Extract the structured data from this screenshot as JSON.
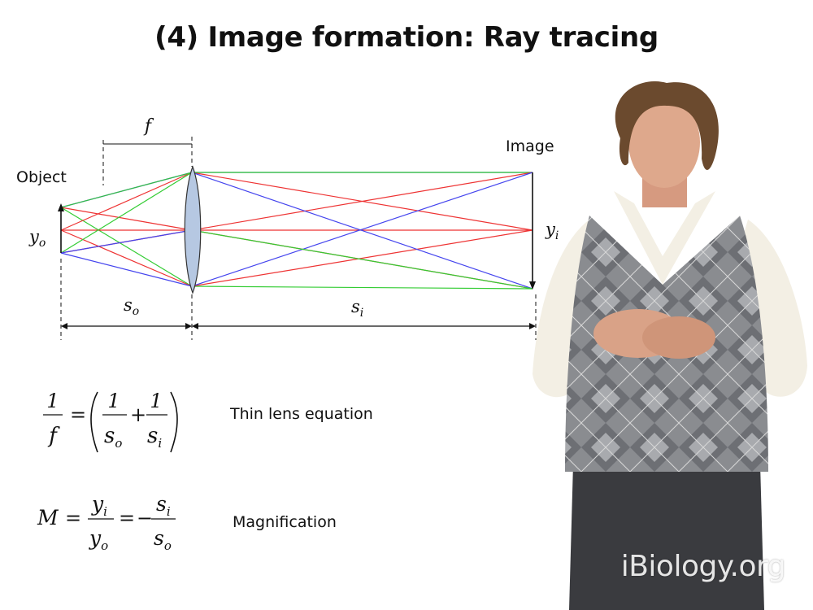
{
  "slide": {
    "title": "(4) Image formation:  Ray tracing",
    "watermark": "iBiology.org"
  },
  "diagram": {
    "labels": {
      "focal": "f",
      "object": "Object",
      "image": "Image",
      "object_height": {
        "main": "y",
        "sub": "o"
      },
      "image_height": {
        "main": "y",
        "sub": "i"
      },
      "object_distance": {
        "main": "s",
        "sub": "o"
      },
      "image_distance": {
        "main": "s",
        "sub": "i"
      }
    },
    "colors": {
      "blue": "#4444ee",
      "red": "#ee3333",
      "green": "#33cc33",
      "lens_fill": "#b6c8e2",
      "lens_stroke": "#333333"
    }
  },
  "equations": {
    "thin_lens": {
      "lhs_num": "1",
      "lhs_den": "f",
      "term1_num": "1",
      "term1_den": "s",
      "term1_sub": "o",
      "term2_num": "1",
      "term2_den": "s",
      "term2_sub": "i",
      "label": "Thin lens equation"
    },
    "magnification": {
      "lhs": "M",
      "frac1_num": "y",
      "frac1_num_sub": "i",
      "frac1_den": "y",
      "frac1_den_sub": "o",
      "frac2_num": "s",
      "frac2_num_sub": "i",
      "frac2_den": "s",
      "frac2_den_sub": "o",
      "label": "Magnification"
    }
  }
}
